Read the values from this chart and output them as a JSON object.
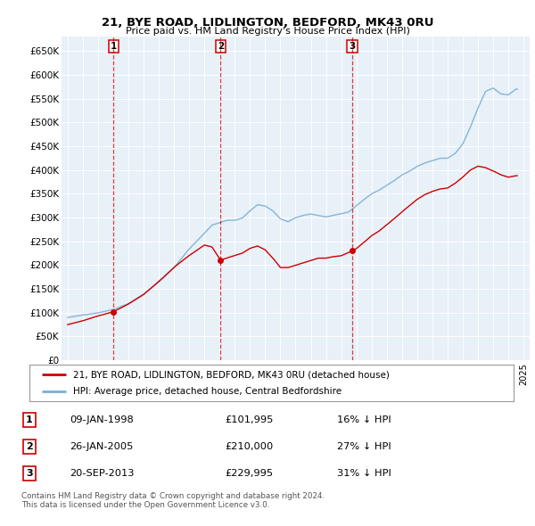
{
  "title": "21, BYE ROAD, LIDLINGTON, BEDFORD, MK43 0RU",
  "subtitle": "Price paid vs. HM Land Registry's House Price Index (HPI)",
  "ylabel_ticks": [
    "£0",
    "£50K",
    "£100K",
    "£150K",
    "£200K",
    "£250K",
    "£300K",
    "£350K",
    "£400K",
    "£450K",
    "£500K",
    "£550K",
    "£600K",
    "£650K"
  ],
  "ylim": [
    0,
    680000
  ],
  "ytick_vals": [
    0,
    50000,
    100000,
    150000,
    200000,
    250000,
    300000,
    350000,
    400000,
    450000,
    500000,
    550000,
    600000,
    650000
  ],
  "xlim_start": 1994.6,
  "xlim_end": 2025.4,
  "sales": [
    {
      "num": 1,
      "date": "09-JAN-1998",
      "price": 101995,
      "year": 1998.03,
      "label_price": "£101,995",
      "pct": "16%",
      "dir": "↓"
    },
    {
      "num": 2,
      "date": "26-JAN-2005",
      "price": 210000,
      "year": 2005.07,
      "label_price": "£210,000",
      "pct": "27%",
      "dir": "↓"
    },
    {
      "num": 3,
      "date": "20-SEP-2013",
      "price": 229995,
      "year": 2013.72,
      "label_price": "£229,995",
      "pct": "31%",
      "dir": "↓"
    }
  ],
  "legend_line1": "21, BYE ROAD, LIDLINGTON, BEDFORD, MK43 0RU (detached house)",
  "legend_line2": "HPI: Average price, detached house, Central Bedfordshire",
  "footnote": "Contains HM Land Registry data © Crown copyright and database right 2024.\nThis data is licensed under the Open Government Licence v3.0.",
  "red_color": "#cc0000",
  "blue_color": "#7ab0d4",
  "plot_bg": "#e8f0f8"
}
